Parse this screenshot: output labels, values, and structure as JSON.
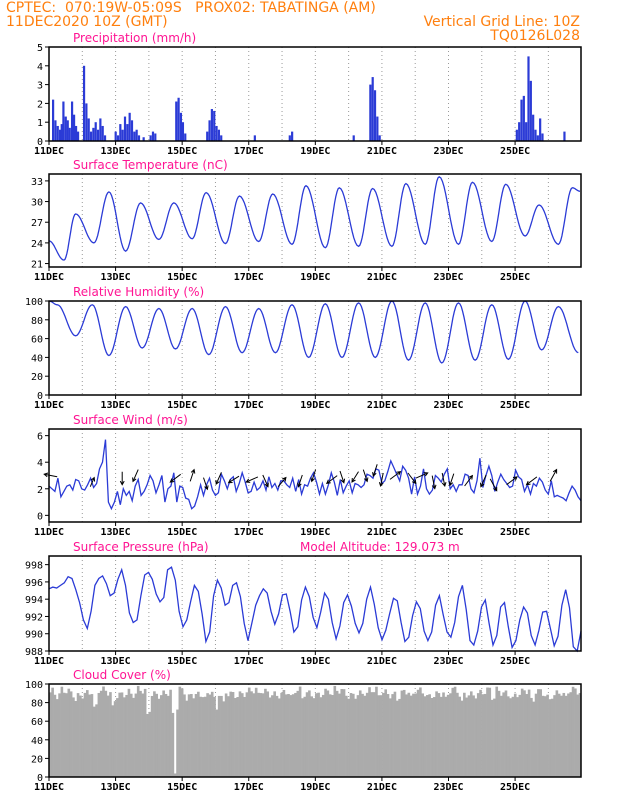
{
  "header": {
    "line1_left": "CPTEC:  070:19W-05:09S   PROX02: TABATINGA (AM)",
    "line2_left": "11DEC2020 10Z (GMT)",
    "line2_right": "Vertical Grid Line: 10Z",
    "line3_right": "TQ0126L028"
  },
  "colors": {
    "header": "#ff7f0e",
    "title": "#ff1493",
    "series": "#2b3bd6",
    "arrow": "#000000",
    "cloud": "#ababab",
    "grid": "#9a9a9a"
  },
  "chart_data": [
    {
      "type": "bar",
      "title": "Precipitation (mm/h)",
      "ylim": [
        0,
        5
      ],
      "yticks": [
        "0",
        "1",
        "2",
        "3",
        "4",
        "5"
      ],
      "xticks": [
        "11DEC",
        "13DEC",
        "15DEC",
        "17DEC",
        "19DEC",
        "21DEC",
        "23DEC",
        "25DEC"
      ],
      "x_unit": "day_from_11DEC_10Z",
      "bars": [
        {
          "x": 0.12,
          "v": 2.2
        },
        {
          "x": 0.19,
          "v": 1.1
        },
        {
          "x": 0.26,
          "v": 0.8
        },
        {
          "x": 0.33,
          "v": 0.6
        },
        {
          "x": 0.38,
          "v": 0.9
        },
        {
          "x": 0.43,
          "v": 2.1
        },
        {
          "x": 0.5,
          "v": 1.3
        },
        {
          "x": 0.56,
          "v": 1.1
        },
        {
          "x": 0.62,
          "v": 0.7
        },
        {
          "x": 0.69,
          "v": 2.1
        },
        {
          "x": 0.75,
          "v": 1.4
        },
        {
          "x": 0.81,
          "v": 0.8
        },
        {
          "x": 0.87,
          "v": 0.5
        },
        {
          "x": 1.05,
          "v": 4.0
        },
        {
          "x": 1.12,
          "v": 2.0
        },
        {
          "x": 1.19,
          "v": 1.2
        },
        {
          "x": 1.26,
          "v": 0.5
        },
        {
          "x": 1.33,
          "v": 0.7
        },
        {
          "x": 1.4,
          "v": 1.0
        },
        {
          "x": 1.47,
          "v": 0.6
        },
        {
          "x": 1.54,
          "v": 1.2
        },
        {
          "x": 1.61,
          "v": 0.8
        },
        {
          "x": 1.68,
          "v": 0.3
        },
        {
          "x": 2.0,
          "v": 0.5
        },
        {
          "x": 2.07,
          "v": 0.3
        },
        {
          "x": 2.14,
          "v": 0.9
        },
        {
          "x": 2.21,
          "v": 0.6
        },
        {
          "x": 2.28,
          "v": 1.3
        },
        {
          "x": 2.35,
          "v": 0.9
        },
        {
          "x": 2.42,
          "v": 1.5
        },
        {
          "x": 2.49,
          "v": 1.1
        },
        {
          "x": 2.56,
          "v": 0.5
        },
        {
          "x": 2.63,
          "v": 0.6
        },
        {
          "x": 2.7,
          "v": 0.3
        },
        {
          "x": 2.84,
          "v": 0.2
        },
        {
          "x": 3.05,
          "v": 0.3
        },
        {
          "x": 3.12,
          "v": 0.5
        },
        {
          "x": 3.19,
          "v": 0.4
        },
        {
          "x": 3.82,
          "v": 2.1
        },
        {
          "x": 3.89,
          "v": 2.3
        },
        {
          "x": 3.96,
          "v": 1.5
        },
        {
          "x": 4.02,
          "v": 1.0
        },
        {
          "x": 4.09,
          "v": 0.4
        },
        {
          "x": 4.75,
          "v": 0.5
        },
        {
          "x": 4.82,
          "v": 1.1
        },
        {
          "x": 4.89,
          "v": 1.7
        },
        {
          "x": 4.96,
          "v": 1.6
        },
        {
          "x": 5.03,
          "v": 0.8
        },
        {
          "x": 5.1,
          "v": 0.6
        },
        {
          "x": 5.17,
          "v": 0.3
        },
        {
          "x": 6.18,
          "v": 0.3
        },
        {
          "x": 7.23,
          "v": 0.3
        },
        {
          "x": 7.3,
          "v": 0.5
        },
        {
          "x": 9.15,
          "v": 0.3
        },
        {
          "x": 9.65,
          "v": 3.0
        },
        {
          "x": 9.72,
          "v": 3.4
        },
        {
          "x": 9.79,
          "v": 2.7
        },
        {
          "x": 9.86,
          "v": 1.3
        },
        {
          "x": 9.93,
          "v": 0.3
        },
        {
          "x": 14.05,
          "v": 0.6
        },
        {
          "x": 14.12,
          "v": 1.0
        },
        {
          "x": 14.19,
          "v": 2.2
        },
        {
          "x": 14.26,
          "v": 2.4
        },
        {
          "x": 14.33,
          "v": 1.0
        },
        {
          "x": 14.4,
          "v": 4.5
        },
        {
          "x": 14.47,
          "v": 3.2
        },
        {
          "x": 14.54,
          "v": 1.4
        },
        {
          "x": 14.61,
          "v": 0.6
        },
        {
          "x": 14.68,
          "v": 0.3
        },
        {
          "x": 14.75,
          "v": 1.2
        },
        {
          "x": 14.82,
          "v": 0.4
        },
        {
          "x": 15.48,
          "v": 0.5
        }
      ]
    },
    {
      "type": "line",
      "title": "Surface Temperature (nC)",
      "ylim": [
        20.5,
        34
      ],
      "yticks": [
        "21",
        "24",
        "27",
        "30",
        "33"
      ],
      "xticks": [
        "11DEC",
        "13DEC",
        "15DEC",
        "17DEC",
        "19DEC",
        "21DEC",
        "23DEC",
        "25DEC"
      ],
      "peaks": [
        [
          0.8,
          28.2
        ],
        [
          1.8,
          31.4
        ],
        [
          2.75,
          29.8
        ],
        [
          3.75,
          29.8
        ],
        [
          4.72,
          31.3
        ],
        [
          5.72,
          30.8
        ],
        [
          6.72,
          31.1
        ],
        [
          7.72,
          32.3
        ],
        [
          8.72,
          32.0
        ],
        [
          9.72,
          31.9
        ],
        [
          10.72,
          32.6
        ],
        [
          11.72,
          33.6
        ],
        [
          12.72,
          32.8
        ],
        [
          13.72,
          32.5
        ],
        [
          14.72,
          29.5
        ],
        [
          15.72,
          32.0
        ]
      ],
      "troughs": [
        [
          0.0,
          24.3
        ],
        [
          0.45,
          21.5
        ],
        [
          1.35,
          24.0
        ],
        [
          2.3,
          22.8
        ],
        [
          3.3,
          24.5
        ],
        [
          4.3,
          24.6
        ],
        [
          5.3,
          23.9
        ],
        [
          6.3,
          24.2
        ],
        [
          7.3,
          23.8
        ],
        [
          8.3,
          23.3
        ],
        [
          9.3,
          23.5
        ],
        [
          10.3,
          23.5
        ],
        [
          11.3,
          23.8
        ],
        [
          12.3,
          23.8
        ],
        [
          13.3,
          24.2
        ],
        [
          14.3,
          25.0
        ],
        [
          15.3,
          23.8
        ],
        [
          15.95,
          31.5
        ]
      ]
    },
    {
      "type": "line",
      "title": "Relative Humidity (%)",
      "ylim": [
        0,
        100
      ],
      "yticks": [
        "0",
        "20",
        "40",
        "60",
        "80",
        "100"
      ],
      "xticks": [
        "11DEC",
        "13DEC",
        "15DEC",
        "17DEC",
        "19DEC",
        "21DEC",
        "23DEC",
        "25DEC"
      ],
      "peaks": [
        [
          0.0,
          100
        ],
        [
          0.25,
          96
        ],
        [
          1.3,
          96
        ],
        [
          2.3,
          94
        ],
        [
          3.3,
          92
        ],
        [
          4.3,
          92
        ],
        [
          5.3,
          94
        ],
        [
          6.3,
          92
        ],
        [
          7.3,
          96
        ],
        [
          8.3,
          97
        ],
        [
          9.3,
          98
        ],
        [
          10.3,
          100
        ],
        [
          11.3,
          98
        ],
        [
          12.3,
          98
        ],
        [
          13.3,
          96
        ],
        [
          14.3,
          100
        ],
        [
          15.3,
          94
        ]
      ],
      "troughs": [
        [
          0.8,
          63
        ],
        [
          1.8,
          42
        ],
        [
          2.8,
          50
        ],
        [
          3.8,
          49
        ],
        [
          4.8,
          43
        ],
        [
          5.8,
          45
        ],
        [
          6.8,
          45
        ],
        [
          7.8,
          40
        ],
        [
          8.8,
          40
        ],
        [
          9.8,
          40
        ],
        [
          10.8,
          37
        ],
        [
          11.8,
          34
        ],
        [
          12.8,
          37
        ],
        [
          13.8,
          38
        ],
        [
          14.8,
          48
        ],
        [
          15.9,
          45
        ]
      ]
    },
    {
      "type": "line",
      "title": "Surface Wind (m/s)",
      "ylim": [
        -0.5,
        6.5
      ],
      "yticks": [
        "0",
        "2",
        "4",
        "6"
      ],
      "xticks": [
        "11DEC",
        "13DEC",
        "15DEC",
        "17DEC",
        "19DEC",
        "21DEC",
        "23DEC",
        "25DEC"
      ],
      "values": [
        2.2,
        2.0,
        1.8,
        2.8,
        1.4,
        1.8,
        2.2,
        2.3,
        1.9,
        2.7,
        2.6,
        2.0,
        1.9,
        2.3,
        2.8,
        2.1,
        2.4,
        3.5,
        4.0,
        5.7,
        1.0,
        0.5,
        1.0,
        1.8,
        0.8,
        2.0,
        1.5,
        1.8,
        1.1,
        2.2,
        2.7,
        1.5,
        1.8,
        2.3,
        3.0,
        2.6,
        1.7,
        2.3,
        3.0,
        1.0,
        2.0,
        2.2,
        3.2,
        1.0,
        2.2,
        2.1,
        1.3,
        1.2,
        0.5,
        0.7,
        1.4,
        2.3,
        1.5,
        2.3,
        2.8,
        1.9,
        1.5,
        1.7,
        3.1,
        2.6,
        2.0,
        2.7,
        2.9,
        1.8,
        2.4,
        3.2,
        2.5,
        1.7,
        1.8,
        2.5,
        1.9,
        2.1,
        2.6,
        1.9,
        2.9,
        2.1,
        2.4,
        1.9,
        2.6,
        2.6,
        2.3,
        2.1,
        2.8,
        1.8,
        2.7,
        1.6,
        2.3,
        2.2,
        2.8,
        3.2,
        2.5,
        1.6,
        2.4,
        1.6,
        2.3,
        3.2,
        2.5,
        1.5,
        2.7,
        1.7,
        2.2,
        2.6,
        1.7,
        2.4,
        2.3,
        2.1,
        2.3,
        3.1,
        3.0,
        2.8,
        3.5,
        3.4,
        2.4,
        2.6,
        3.3,
        4.1,
        3.6,
        3.1,
        2.6,
        3.7,
        3.4,
        2.8,
        1.6,
        2.9,
        1.6,
        2.2,
        3.5,
        2.0,
        1.6,
        1.9,
        3.0,
        2.8,
        2.5,
        3.1,
        3.5,
        2.0,
        2.3,
        1.8,
        2.3,
        2.3,
        3.1,
        3.0,
        2.0,
        1.7,
        2.6,
        4.3,
        2.1,
        3.0,
        3.7,
        3.0,
        1.8,
        2.5,
        3.1,
        2.7,
        2.4,
        2.1,
        2.2,
        3.4,
        2.9,
        2.7,
        1.8,
        2.3,
        1.6,
        2.4,
        2.2,
        2.8,
        2.5,
        1.9,
        1.6,
        2.6,
        1.4,
        1.5,
        1.4,
        1.3,
        1.1,
        1.7,
        2.2,
        1.9,
        1.4,
        1.1
      ],
      "arrows": [
        [
          0.05,
          3.0,
          -1,
          0.2
        ],
        [
          1.3,
          2.5,
          0.3,
          0.7
        ],
        [
          2.2,
          2.8,
          0,
          -1
        ],
        [
          2.6,
          3.0,
          -0.4,
          -0.9
        ],
        [
          3.8,
          2.8,
          -0.8,
          -0.6
        ],
        [
          4.3,
          3.0,
          0.3,
          0.9
        ],
        [
          4.7,
          2.4,
          0.3,
          -0.9
        ],
        [
          5.1,
          2.8,
          -0.4,
          -0.9
        ],
        [
          5.55,
          2.7,
          -0.8,
          -0.5
        ],
        [
          6.1,
          2.7,
          -0.9,
          -0.4
        ],
        [
          6.5,
          2.6,
          0.4,
          -0.9
        ],
        [
          7.0,
          2.5,
          0.6,
          0.7
        ],
        [
          7.55,
          2.6,
          -0.3,
          -0.9
        ],
        [
          7.95,
          3.0,
          -0.3,
          -0.9
        ],
        [
          8.5,
          2.7,
          -0.8,
          -0.6
        ],
        [
          8.8,
          2.9,
          0.3,
          -0.9
        ],
        [
          9.2,
          2.9,
          -0.5,
          -0.8
        ],
        [
          9.5,
          3.0,
          0.3,
          -0.9
        ],
        [
          9.8,
          3.4,
          -0.3,
          -0.9
        ],
        [
          10.0,
          2.7,
          -0.2,
          -1
        ],
        [
          10.4,
          3.0,
          0.8,
          0.6
        ],
        [
          10.9,
          2.8,
          0.6,
          -0.8
        ],
        [
          11.2,
          3.0,
          0.9,
          0.4
        ],
        [
          11.55,
          2.5,
          0.2,
          -1
        ],
        [
          11.85,
          2.7,
          0.2,
          -1
        ],
        [
          12.1,
          2.7,
          -0.3,
          -0.9
        ],
        [
          12.6,
          2.6,
          0.6,
          0.8
        ],
        [
          13.05,
          2.6,
          -0.4,
          -0.9
        ],
        [
          13.35,
          2.3,
          0.5,
          -0.9
        ],
        [
          13.9,
          2.6,
          0.8,
          0.6
        ],
        [
          14.5,
          2.6,
          -0.8,
          -0.6
        ],
        [
          15.15,
          3.0,
          0.5,
          0.9
        ]
      ]
    },
    {
      "type": "line",
      "title": "Surface Pressure (hPa)",
      "annotation": "Model Altitude: 129.073 m",
      "ylim": [
        988,
        999
      ],
      "yticks": [
        "988",
        "990",
        "992",
        "994",
        "996",
        "998"
      ],
      "xticks": [
        "11DEC",
        "13DEC",
        "15DEC",
        "17DEC",
        "19DEC",
        "21DEC",
        "23DEC",
        "25DEC"
      ],
      "values": [
        995.2,
        995.4,
        995.3,
        995.6,
        995.9,
        996.6,
        996.4,
        995.1,
        993.6,
        991.6,
        990.6,
        992.6,
        995.6,
        996.4,
        996.7,
        995.8,
        994.4,
        994.7,
        996.3,
        997.4,
        995.6,
        992.4,
        991.3,
        991.6,
        994.4,
        996.8,
        997.1,
        996.3,
        994.6,
        993.7,
        994.2,
        997.4,
        997.7,
        996.2,
        992.6,
        990.8,
        991.6,
        993.7,
        995.6,
        994.9,
        992.3,
        989.1,
        990.2,
        994.4,
        996.2,
        995.3,
        993.3,
        993.6,
        995.6,
        995.9,
        994.3,
        991.2,
        989.2,
        991.2,
        993.3,
        994.4,
        995.2,
        994.7,
        992.6,
        991.1,
        992.3,
        994.5,
        994.6,
        992.6,
        990.2,
        990.8,
        993.9,
        995.4,
        994.3,
        991.9,
        990.7,
        992.5,
        994.7,
        994.0,
        991.3,
        989.4,
        990.9,
        993.6,
        994.5,
        993.2,
        991.2,
        990.1,
        991.2,
        994.0,
        995.4,
        993.4,
        990.7,
        989.3,
        990.4,
        992.3,
        994.1,
        993.8,
        991.3,
        989.1,
        989.6,
        992.1,
        993.7,
        992.9,
        990.3,
        989.2,
        990.2,
        993.3,
        994.4,
        992.2,
        990.2,
        989.6,
        991.3,
        994.3,
        995.6,
        992.8,
        989.2,
        988.7,
        990.3,
        993.1,
        993.9,
        991.2,
        988.7,
        989.8,
        993.1,
        993.6,
        990.8,
        988.4,
        989.2,
        991.6,
        993.1,
        992.4,
        989.8,
        988.7,
        990.4,
        992.5,
        992.6,
        990.6,
        988.6,
        989.7,
        993.3,
        995.1,
        993.0,
        988.5,
        988.0,
        990.3
      ]
    },
    {
      "type": "bar",
      "title": "Cloud Cover (%)",
      "ylim": [
        0,
        100
      ],
      "yticks": [
        "0",
        "20",
        "40",
        "60",
        "80",
        "100"
      ],
      "xticks": [
        "11DEC",
        "13DEC",
        "15DEC",
        "17DEC",
        "19DEC",
        "21DEC",
        "23DEC",
        "25DEC"
      ],
      "typical_value": 91,
      "dips": [
        [
          0.2,
          83
        ],
        [
          0.75,
          80
        ],
        [
          1.35,
          68
        ],
        [
          1.9,
          72
        ],
        [
          2.5,
          85
        ],
        [
          2.95,
          55
        ],
        [
          3.3,
          88
        ],
        [
          3.75,
          2
        ],
        [
          4.1,
          82
        ],
        [
          4.65,
          86
        ],
        [
          5.0,
          72
        ],
        [
          5.2,
          80
        ],
        [
          5.6,
          88
        ],
        [
          6.3,
          90
        ],
        [
          6.85,
          84
        ],
        [
          7.25,
          87
        ],
        [
          7.6,
          82
        ],
        [
          8.0,
          90
        ],
        [
          8.45,
          87
        ],
        [
          8.95,
          83
        ],
        [
          9.45,
          89
        ],
        [
          9.9,
          86
        ],
        [
          10.45,
          78
        ],
        [
          10.85,
          87
        ],
        [
          11.35,
          87
        ],
        [
          11.9,
          85
        ],
        [
          12.35,
          80
        ],
        [
          12.8,
          89
        ],
        [
          13.3,
          79
        ],
        [
          13.9,
          86
        ],
        [
          14.5,
          78
        ],
        [
          15.0,
          83
        ],
        [
          15.5,
          87
        ]
      ]
    }
  ]
}
